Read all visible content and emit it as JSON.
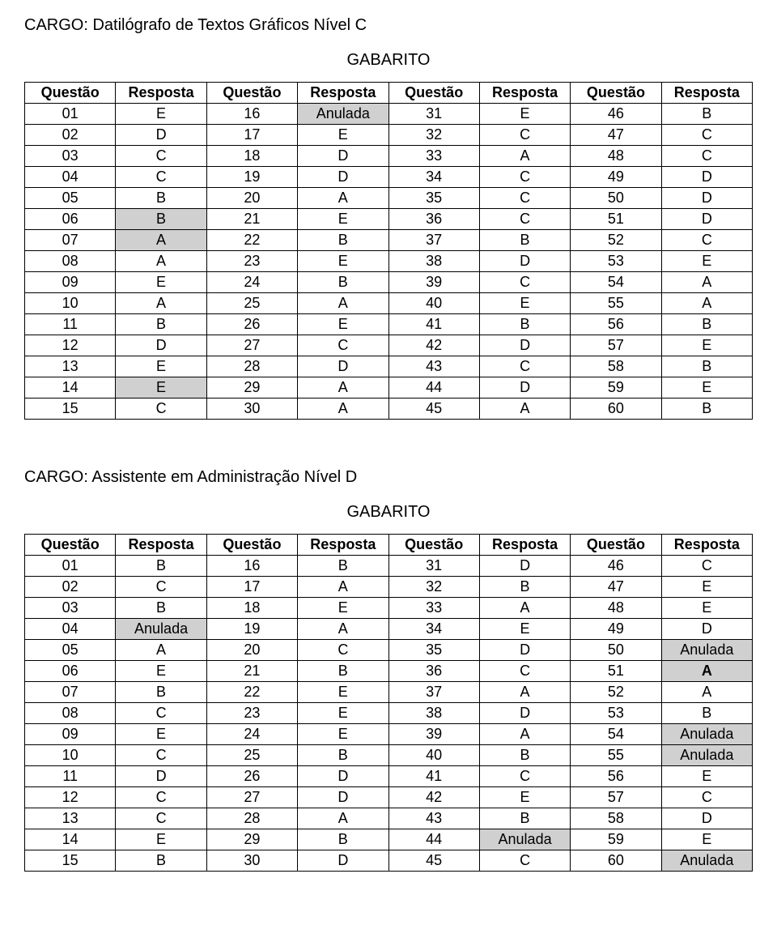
{
  "section1": {
    "cargo_title": "CARGO: Datilógrafo de Textos Gráficos Nível C",
    "gabarito_title": "GABARITO",
    "headers": [
      "Questão",
      "Resposta",
      "Questão",
      "Resposta",
      "Questão",
      "Resposta",
      "Questão",
      "Resposta"
    ],
    "rows": [
      [
        {
          "v": "01"
        },
        {
          "v": "E"
        },
        {
          "v": "16"
        },
        {
          "v": "Anulada",
          "hl": true
        },
        {
          "v": "31"
        },
        {
          "v": "E"
        },
        {
          "v": "46"
        },
        {
          "v": "B"
        }
      ],
      [
        {
          "v": "02"
        },
        {
          "v": "D"
        },
        {
          "v": "17"
        },
        {
          "v": "E"
        },
        {
          "v": "32"
        },
        {
          "v": "C"
        },
        {
          "v": "47"
        },
        {
          "v": "C"
        }
      ],
      [
        {
          "v": "03"
        },
        {
          "v": "C"
        },
        {
          "v": "18"
        },
        {
          "v": "D"
        },
        {
          "v": "33"
        },
        {
          "v": "A"
        },
        {
          "v": "48"
        },
        {
          "v": "C"
        }
      ],
      [
        {
          "v": "04"
        },
        {
          "v": "C"
        },
        {
          "v": "19"
        },
        {
          "v": "D"
        },
        {
          "v": "34"
        },
        {
          "v": "C"
        },
        {
          "v": "49"
        },
        {
          "v": "D"
        }
      ],
      [
        {
          "v": "05"
        },
        {
          "v": "B"
        },
        {
          "v": "20"
        },
        {
          "v": "A"
        },
        {
          "v": "35"
        },
        {
          "v": "C"
        },
        {
          "v": "50"
        },
        {
          "v": "D"
        }
      ],
      [
        {
          "v": "06"
        },
        {
          "v": "B",
          "hl": true
        },
        {
          "v": "21"
        },
        {
          "v": "E"
        },
        {
          "v": "36"
        },
        {
          "v": "C"
        },
        {
          "v": "51"
        },
        {
          "v": "D"
        }
      ],
      [
        {
          "v": "07"
        },
        {
          "v": "A",
          "hl": true
        },
        {
          "v": "22"
        },
        {
          "v": "B"
        },
        {
          "v": "37"
        },
        {
          "v": "B"
        },
        {
          "v": "52"
        },
        {
          "v": "C"
        }
      ],
      [
        {
          "v": "08"
        },
        {
          "v": "A"
        },
        {
          "v": "23"
        },
        {
          "v": "E"
        },
        {
          "v": "38"
        },
        {
          "v": "D"
        },
        {
          "v": "53"
        },
        {
          "v": "E"
        }
      ],
      [
        {
          "v": "09"
        },
        {
          "v": "E"
        },
        {
          "v": "24"
        },
        {
          "v": "B"
        },
        {
          "v": "39"
        },
        {
          "v": "C"
        },
        {
          "v": "54"
        },
        {
          "v": "A"
        }
      ],
      [
        {
          "v": "10"
        },
        {
          "v": "A"
        },
        {
          "v": "25"
        },
        {
          "v": "A"
        },
        {
          "v": "40"
        },
        {
          "v": "E"
        },
        {
          "v": "55"
        },
        {
          "v": "A"
        }
      ],
      [
        {
          "v": "11"
        },
        {
          "v": "B"
        },
        {
          "v": "26"
        },
        {
          "v": "E"
        },
        {
          "v": "41"
        },
        {
          "v": "B"
        },
        {
          "v": "56"
        },
        {
          "v": "B"
        }
      ],
      [
        {
          "v": "12"
        },
        {
          "v": "D"
        },
        {
          "v": "27"
        },
        {
          "v": "C"
        },
        {
          "v": "42"
        },
        {
          "v": "D"
        },
        {
          "v": "57"
        },
        {
          "v": "E"
        }
      ],
      [
        {
          "v": "13"
        },
        {
          "v": "E"
        },
        {
          "v": "28"
        },
        {
          "v": "D"
        },
        {
          "v": "43"
        },
        {
          "v": "C"
        },
        {
          "v": "58"
        },
        {
          "v": "B"
        }
      ],
      [
        {
          "v": "14"
        },
        {
          "v": "E",
          "hl": true
        },
        {
          "v": "29"
        },
        {
          "v": "A"
        },
        {
          "v": "44"
        },
        {
          "v": "D"
        },
        {
          "v": "59"
        },
        {
          "v": "E"
        }
      ],
      [
        {
          "v": "15"
        },
        {
          "v": "C"
        },
        {
          "v": "30"
        },
        {
          "v": "A"
        },
        {
          "v": "45"
        },
        {
          "v": "A"
        },
        {
          "v": "60"
        },
        {
          "v": "B"
        }
      ]
    ]
  },
  "section2": {
    "cargo_title": "CARGO: Assistente em Administração Nível D",
    "gabarito_title": "GABARITO",
    "headers": [
      "Questão",
      "Resposta",
      "Questão",
      "Resposta",
      "Questão",
      "Resposta",
      "Questão",
      "Resposta"
    ],
    "rows": [
      [
        {
          "v": "01"
        },
        {
          "v": "B"
        },
        {
          "v": "16"
        },
        {
          "v": "B"
        },
        {
          "v": "31"
        },
        {
          "v": "D"
        },
        {
          "v": "46"
        },
        {
          "v": "C"
        }
      ],
      [
        {
          "v": "02"
        },
        {
          "v": "C"
        },
        {
          "v": "17"
        },
        {
          "v": "A"
        },
        {
          "v": "32"
        },
        {
          "v": "B"
        },
        {
          "v": "47"
        },
        {
          "v": "E"
        }
      ],
      [
        {
          "v": "03"
        },
        {
          "v": "B"
        },
        {
          "v": "18"
        },
        {
          "v": "E"
        },
        {
          "v": "33"
        },
        {
          "v": "A"
        },
        {
          "v": "48"
        },
        {
          "v": "E"
        }
      ],
      [
        {
          "v": "04"
        },
        {
          "v": "Anulada",
          "hl": true
        },
        {
          "v": "19"
        },
        {
          "v": "A"
        },
        {
          "v": "34"
        },
        {
          "v": "E"
        },
        {
          "v": "49"
        },
        {
          "v": "D"
        }
      ],
      [
        {
          "v": "05"
        },
        {
          "v": "A"
        },
        {
          "v": "20"
        },
        {
          "v": "C"
        },
        {
          "v": "35"
        },
        {
          "v": "D"
        },
        {
          "v": "50"
        },
        {
          "v": "Anulada",
          "hl": true
        }
      ],
      [
        {
          "v": "06"
        },
        {
          "v": "E"
        },
        {
          "v": "21"
        },
        {
          "v": "B"
        },
        {
          "v": "36"
        },
        {
          "v": "C"
        },
        {
          "v": "51"
        },
        {
          "v": "A",
          "hl": true,
          "bold": true
        }
      ],
      [
        {
          "v": "07"
        },
        {
          "v": "B"
        },
        {
          "v": "22"
        },
        {
          "v": "E"
        },
        {
          "v": "37"
        },
        {
          "v": "A"
        },
        {
          "v": "52"
        },
        {
          "v": "A"
        }
      ],
      [
        {
          "v": "08"
        },
        {
          "v": "C"
        },
        {
          "v": "23"
        },
        {
          "v": "E"
        },
        {
          "v": "38"
        },
        {
          "v": "D"
        },
        {
          "v": "53"
        },
        {
          "v": "B"
        }
      ],
      [
        {
          "v": "09"
        },
        {
          "v": "E"
        },
        {
          "v": "24"
        },
        {
          "v": "E"
        },
        {
          "v": "39"
        },
        {
          "v": "A"
        },
        {
          "v": "54"
        },
        {
          "v": "Anulada",
          "hl": true
        }
      ],
      [
        {
          "v": "10"
        },
        {
          "v": "C"
        },
        {
          "v": "25"
        },
        {
          "v": "B"
        },
        {
          "v": "40"
        },
        {
          "v": "B"
        },
        {
          "v": "55"
        },
        {
          "v": "Anulada",
          "hl": true
        }
      ],
      [
        {
          "v": "11"
        },
        {
          "v": "D"
        },
        {
          "v": "26"
        },
        {
          "v": "D"
        },
        {
          "v": "41"
        },
        {
          "v": "C"
        },
        {
          "v": "56"
        },
        {
          "v": "E"
        }
      ],
      [
        {
          "v": "12"
        },
        {
          "v": "C"
        },
        {
          "v": "27"
        },
        {
          "v": "D"
        },
        {
          "v": "42"
        },
        {
          "v": "E"
        },
        {
          "v": "57"
        },
        {
          "v": "C"
        }
      ],
      [
        {
          "v": "13"
        },
        {
          "v": "C"
        },
        {
          "v": "28"
        },
        {
          "v": "A"
        },
        {
          "v": "43"
        },
        {
          "v": "B"
        },
        {
          "v": "58"
        },
        {
          "v": "D"
        }
      ],
      [
        {
          "v": "14"
        },
        {
          "v": "E"
        },
        {
          "v": "29"
        },
        {
          "v": "B"
        },
        {
          "v": "44"
        },
        {
          "v": "Anulada",
          "hl": true
        },
        {
          "v": "59"
        },
        {
          "v": "E"
        }
      ],
      [
        {
          "v": "15"
        },
        {
          "v": "B"
        },
        {
          "v": "30"
        },
        {
          "v": "D"
        },
        {
          "v": "45"
        },
        {
          "v": "C"
        },
        {
          "v": "60"
        },
        {
          "v": "Anulada",
          "hl": true
        }
      ]
    ]
  }
}
